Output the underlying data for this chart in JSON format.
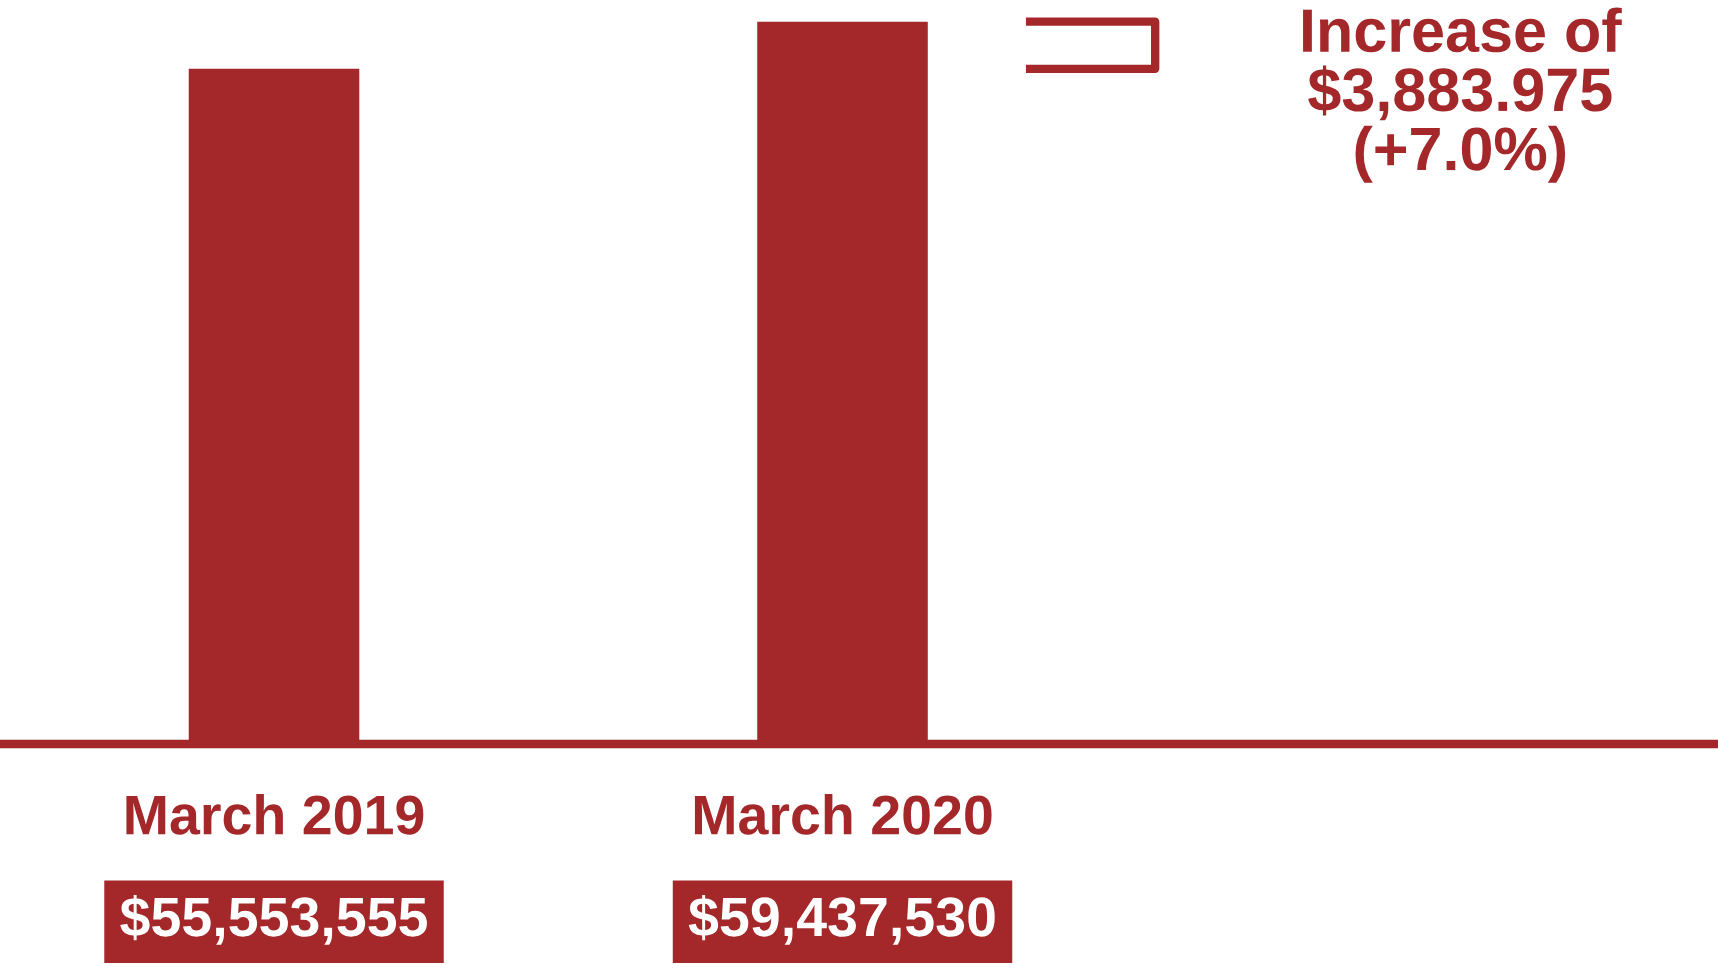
{
  "chart_data": {
    "type": "bar",
    "categories": [
      "March 2019",
      "March 2020"
    ],
    "values": [
      55553555,
      59437530
    ],
    "value_labels": [
      "$55,553,555",
      "$59,437,530"
    ],
    "color": "#a4282a",
    "tick_labels": "x",
    "grid": false,
    "annotations": [
      "Increase of\n$3,883.975\n(+7.0%)"
    ]
  }
}
